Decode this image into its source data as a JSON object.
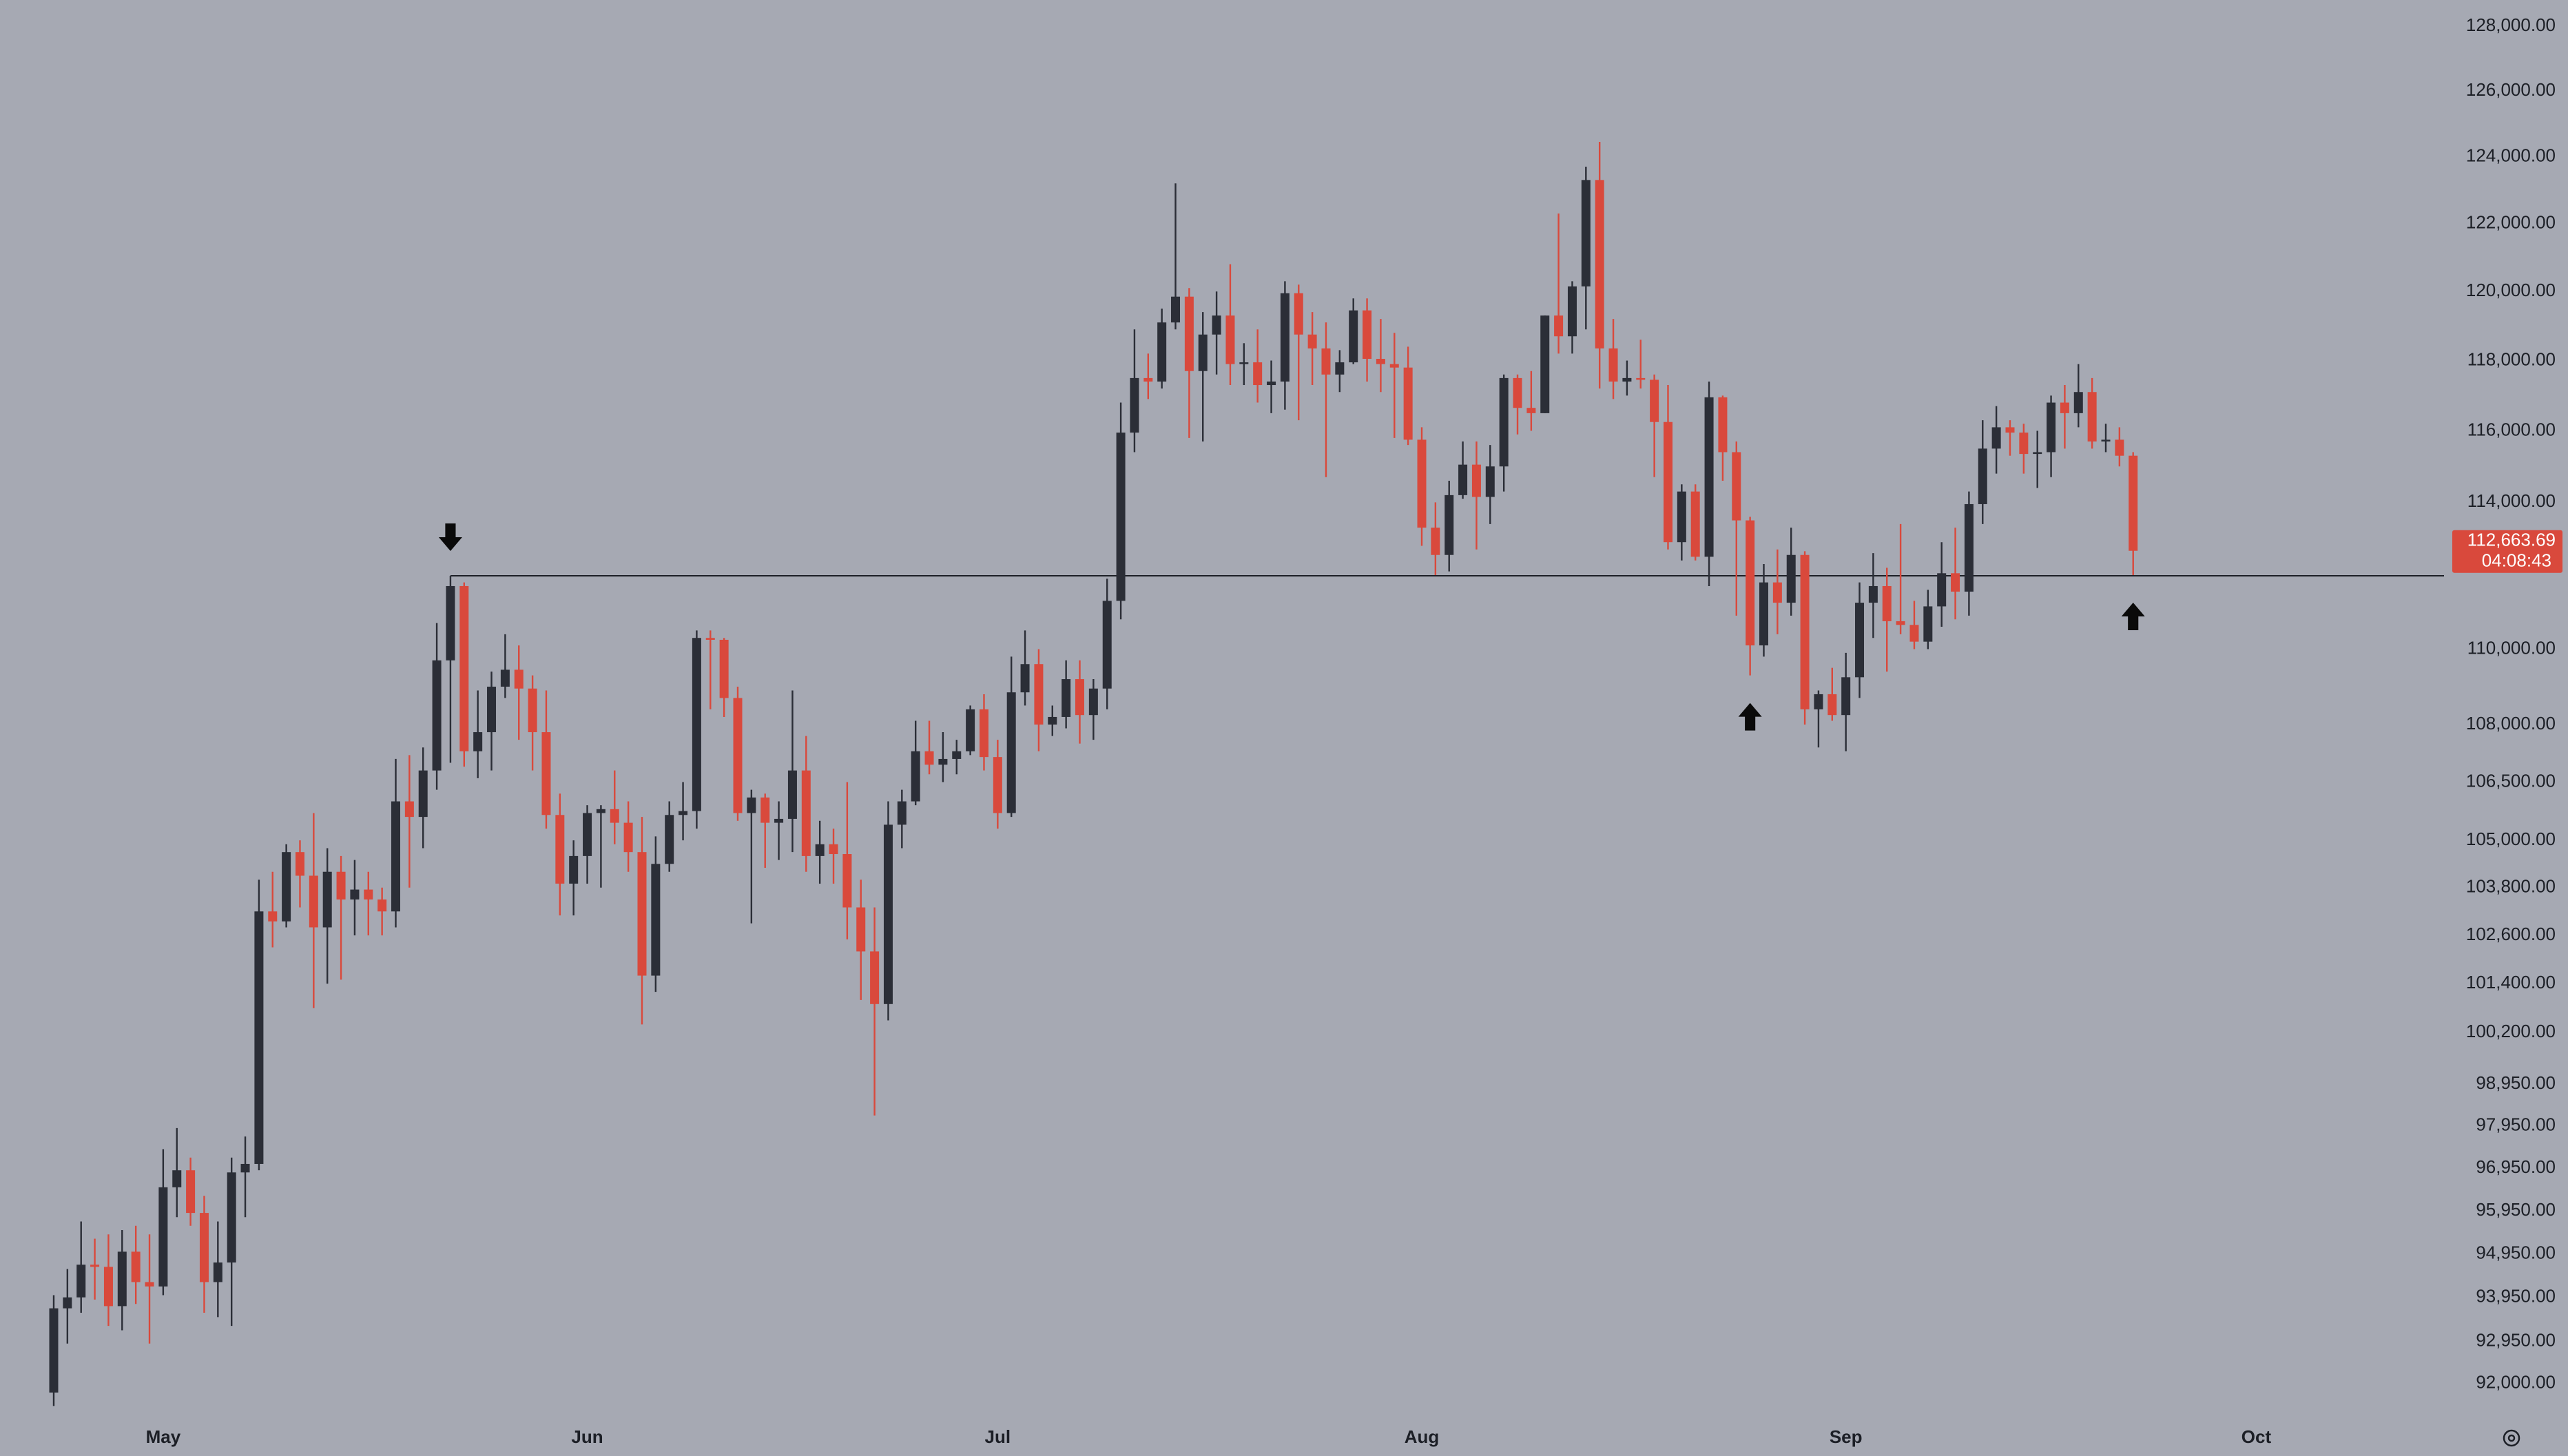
{
  "chart_data": {
    "type": "candlestick",
    "categories": [
      null,
      null,
      null,
      null,
      null,
      null,
      null,
      null,
      "May",
      null,
      null,
      null,
      null,
      null,
      null,
      null,
      null,
      null,
      null,
      null,
      null,
      null,
      null,
      null,
      null,
      null,
      null,
      null,
      null,
      null,
      null,
      null,
      null,
      null,
      null,
      null,
      null,
      null,
      null,
      "Jun",
      null,
      null,
      null,
      null,
      null,
      null,
      null,
      null,
      null,
      null,
      null,
      null,
      null,
      null,
      null,
      null,
      null,
      null,
      null,
      null,
      null,
      null,
      null,
      null,
      null,
      null,
      null,
      null,
      null,
      "Jul",
      null,
      null,
      null,
      null,
      null,
      null,
      null,
      null,
      null,
      null,
      null,
      null,
      null,
      null,
      null,
      null,
      null,
      null,
      null,
      null,
      null,
      null,
      null,
      null,
      null,
      null,
      null,
      null,
      null,
      null,
      "Aug",
      null,
      null,
      null,
      null,
      null,
      null,
      null,
      null,
      null,
      null,
      null,
      null,
      null,
      null,
      null,
      null,
      null,
      null,
      null,
      null,
      null,
      null,
      null,
      null,
      null,
      null,
      null,
      null,
      null,
      null,
      "Sep",
      null,
      null,
      null,
      null,
      null,
      null,
      null,
      null,
      null,
      null,
      null,
      null,
      null,
      null,
      null,
      null,
      null,
      null,
      null,
      null,
      null,
      null,
      null,
      null,
      null,
      null,
      null,
      null,
      null,
      "Oct"
    ],
    "open": [
      91800,
      93700,
      93950,
      94700,
      94650,
      93750,
      95000,
      94300,
      94200,
      96500,
      96900,
      95900,
      94300,
      94750,
      96850,
      97050,
      103200,
      102950,
      104700,
      104100,
      102800,
      104200,
      103500,
      103750,
      103500,
      103200,
      106000,
      105600,
      106800,
      109700,
      111700,
      107300,
      107800,
      109000,
      109450,
      108950,
      107800,
      105650,
      103900,
      104600,
      105700,
      105800,
      105450,
      104700,
      101600,
      104400,
      105650,
      105750,
      110300,
      110250,
      108700,
      105700,
      106100,
      105450,
      105550,
      106800,
      104600,
      104900,
      104650,
      103300,
      102200,
      100900,
      105400,
      106000,
      107300,
      106950,
      107100,
      107300,
      108400,
      107150,
      105700,
      108850,
      109600,
      108000,
      108200,
      109200,
      108250,
      108950,
      111300,
      115950,
      117500,
      117400,
      119100,
      119850,
      117700,
      118750,
      119300,
      117900,
      117950,
      117300,
      117400,
      119950,
      118750,
      118350,
      117600,
      117950,
      119450,
      118050,
      117900,
      117800,
      115750,
      113300,
      112550,
      114200,
      115050,
      114150,
      115000,
      117500,
      116650,
      116500,
      119300,
      118700,
      120150,
      123300,
      118350,
      117400,
      117500,
      117450,
      116250,
      112900,
      114300,
      112500,
      116950,
      115400,
      113500,
      110100,
      111800,
      111250,
      112550,
      108400,
      108800,
      108250,
      109250,
      111250,
      111700,
      110750,
      110650,
      110200,
      111150,
      112050,
      111550,
      113950,
      115500,
      116100,
      115950,
      115350,
      115400,
      116800,
      116500,
      117100,
      115700,
      115750,
      115300,
      null,
      null,
      null,
      null,
      null,
      null,
      null,
      null,
      null
    ],
    "high": [
      94000,
      94600,
      95700,
      95300,
      95400,
      95500,
      95600,
      95400,
      97400,
      97900,
      97200,
      96300,
      95700,
      97200,
      97700,
      104000,
      104200,
      104900,
      105000,
      105700,
      104800,
      104600,
      104500,
      104200,
      103800,
      107100,
      107200,
      107400,
      110700,
      111980,
      111800,
      108900,
      109400,
      110400,
      110100,
      109300,
      108900,
      106200,
      105000,
      105900,
      105900,
      106800,
      106000,
      105600,
      105100,
      106000,
      106500,
      110500,
      110500,
      110300,
      109000,
      106300,
      106200,
      106000,
      108900,
      107700,
      105500,
      105300,
      106500,
      104000,
      103300,
      106000,
      106300,
      108100,
      108100,
      107800,
      107600,
      108500,
      108800,
      107600,
      109800,
      110500,
      110000,
      108500,
      109700,
      109700,
      109200,
      111900,
      116800,
      118900,
      118200,
      119500,
      123200,
      120100,
      119400,
      120000,
      120800,
      118500,
      118900,
      118000,
      120300,
      120200,
      119400,
      119100,
      118300,
      119800,
      119800,
      119200,
      118800,
      118400,
      116100,
      114000,
      114600,
      115700,
      115700,
      115600,
      117600,
      117600,
      117700,
      119300,
      122300,
      120300,
      123700,
      124450,
      119200,
      118000,
      118600,
      117600,
      117300,
      114500,
      114500,
      117400,
      117000,
      115700,
      113600,
      112300,
      112700,
      113300,
      112650,
      108900,
      109500,
      109900,
      111800,
      112600,
      112200,
      113400,
      111300,
      111600,
      112900,
      113300,
      114300,
      116300,
      116700,
      116300,
      116200,
      116000,
      117000,
      117300,
      117900,
      117500,
      116200,
      116100,
      115400,
      null,
      null,
      null,
      null,
      null,
      null,
      null,
      null,
      null
    ],
    "low": [
      91500,
      92900,
      93600,
      93900,
      93300,
      93200,
      93800,
      92900,
      94000,
      95800,
      95600,
      93600,
      93500,
      93300,
      95800,
      96900,
      102300,
      102800,
      103300,
      100800,
      101400,
      101500,
      102600,
      102600,
      102600,
      102800,
      103800,
      104800,
      106300,
      107000,
      106900,
      106600,
      106800,
      108700,
      107600,
      106800,
      105300,
      103100,
      103100,
      103900,
      103800,
      104900,
      104200,
      100400,
      101200,
      104200,
      105000,
      105300,
      108400,
      108200,
      105500,
      102900,
      104300,
      104500,
      104700,
      104200,
      103900,
      103900,
      102500,
      101000,
      98200,
      100500,
      104800,
      105900,
      106700,
      106500,
      106700,
      107200,
      106800,
      105300,
      105600,
      108500,
      107300,
      107700,
      107900,
      107500,
      107600,
      108400,
      110800,
      115400,
      116900,
      117200,
      118900,
      115800,
      115700,
      117600,
      117300,
      117300,
      116800,
      116500,
      116600,
      116300,
      117300,
      114700,
      117100,
      117900,
      117400,
      117100,
      115800,
      115600,
      112800,
      112000,
      112100,
      114100,
      112700,
      113400,
      114300,
      115900,
      116000,
      116500,
      118200,
      118200,
      118900,
      117200,
      116900,
      117000,
      117200,
      114700,
      112700,
      112400,
      112400,
      111700,
      114600,
      110900,
      109300,
      109800,
      110400,
      110900,
      108000,
      107400,
      108100,
      107300,
      108700,
      110300,
      109400,
      110400,
      110000,
      110000,
      110600,
      110800,
      110900,
      113400,
      114800,
      115300,
      114800,
      114400,
      114700,
      115500,
      116100,
      115500,
      115400,
      115000,
      112000,
      null,
      null,
      null,
      null,
      null,
      null,
      null,
      null,
      null
    ],
    "close": [
      93700,
      93950,
      94700,
      94650,
      93750,
      95000,
      94300,
      94200,
      96500,
      96900,
      95900,
      94300,
      94750,
      96850,
      97050,
      103200,
      102950,
      104700,
      104100,
      102800,
      104200,
      103500,
      103750,
      103500,
      103200,
      106000,
      105600,
      106800,
      109700,
      111700,
      107300,
      107800,
      109000,
      109450,
      108950,
      107800,
      105650,
      103900,
      104600,
      105700,
      105800,
      105450,
      104700,
      101600,
      104400,
      105650,
      105750,
      110300,
      110250,
      108700,
      105700,
      106100,
      105450,
      105550,
      106800,
      104600,
      104900,
      104650,
      103300,
      102200,
      100900,
      105400,
      106000,
      107300,
      106950,
      107100,
      107300,
      108400,
      107150,
      105700,
      108850,
      109600,
      108000,
      108200,
      109200,
      108250,
      108950,
      111300,
      115950,
      117500,
      117400,
      119100,
      119850,
      117700,
      118750,
      119300,
      117900,
      117950,
      117300,
      117400,
      119950,
      118750,
      118350,
      117600,
      117950,
      119450,
      118050,
      117900,
      117800,
      115750,
      113300,
      112550,
      114200,
      115050,
      114150,
      115000,
      117500,
      116650,
      116500,
      119300,
      118700,
      120150,
      123300,
      118350,
      117400,
      117500,
      117450,
      116250,
      112900,
      114300,
      112500,
      116950,
      115400,
      113500,
      110100,
      111800,
      111250,
      112550,
      108400,
      108800,
      108250,
      109250,
      111250,
      111700,
      110750,
      110650,
      110200,
      111150,
      112050,
      111550,
      113950,
      115500,
      116100,
      115950,
      115350,
      115400,
      116800,
      116500,
      117100,
      115700,
      115750,
      115300,
      112663.69,
      null,
      null,
      null,
      null,
      null,
      null,
      null,
      null,
      null
    ],
    "up_color": "#2b2e37",
    "down_color": "#d9493c",
    "log_scale": true,
    "grid": false,
    "ylim": [
      91230,
      128820
    ],
    "yticks": [
      {
        "value": 128000,
        "label": "128,000.00"
      },
      {
        "value": 126000,
        "label": "126,000.00"
      },
      {
        "value": 124000,
        "label": "124,000.00"
      },
      {
        "value": 122000,
        "label": "122,000.00"
      },
      {
        "value": 120000,
        "label": "120,000.00"
      },
      {
        "value": 118000,
        "label": "118,000.00"
      },
      {
        "value": 116000,
        "label": "116,000.00"
      },
      {
        "value": 114000,
        "label": "114,000.00"
      },
      {
        "value": 110000,
        "label": "110,000.00"
      },
      {
        "value": 108000,
        "label": "108,000.00"
      },
      {
        "value": 106500,
        "label": "106,500.00"
      },
      {
        "value": 105000,
        "label": "105,000.00"
      },
      {
        "value": 103800,
        "label": "103,800.00"
      },
      {
        "value": 102600,
        "label": "102,600.00"
      },
      {
        "value": 101400,
        "label": "101,400.00"
      },
      {
        "value": 100200,
        "label": "100,200.00"
      },
      {
        "value": 98950,
        "label": "98,950.00"
      },
      {
        "value": 97950,
        "label": "97,950.00"
      },
      {
        "value": 96950,
        "label": "96,950.00"
      },
      {
        "value": 95950,
        "label": "95,950.00"
      },
      {
        "value": 94950,
        "label": "94,950.00"
      },
      {
        "value": 93950,
        "label": "93,950.00"
      },
      {
        "value": 92950,
        "label": "92,950.00"
      },
      {
        "value": 92000,
        "label": "92,000.00"
      }
    ],
    "hline": 111980,
    "last_value_label": "112,663.69",
    "countdown": "04:08:43"
  }
}
